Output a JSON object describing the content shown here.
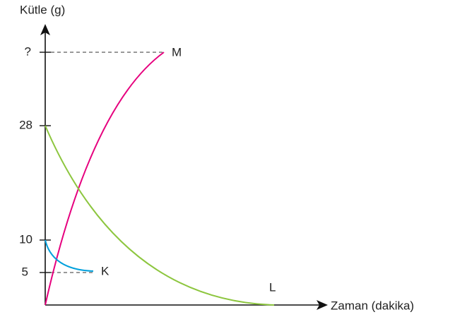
{
  "axes": {
    "y_label": "Kütle (g)",
    "x_label": "Zaman (dakika)",
    "y_ticks": [
      "?",
      "28",
      "10",
      "5"
    ]
  },
  "curves": [
    {
      "label": "M"
    },
    {
      "label": "K"
    },
    {
      "label": "L"
    }
  ]
}
